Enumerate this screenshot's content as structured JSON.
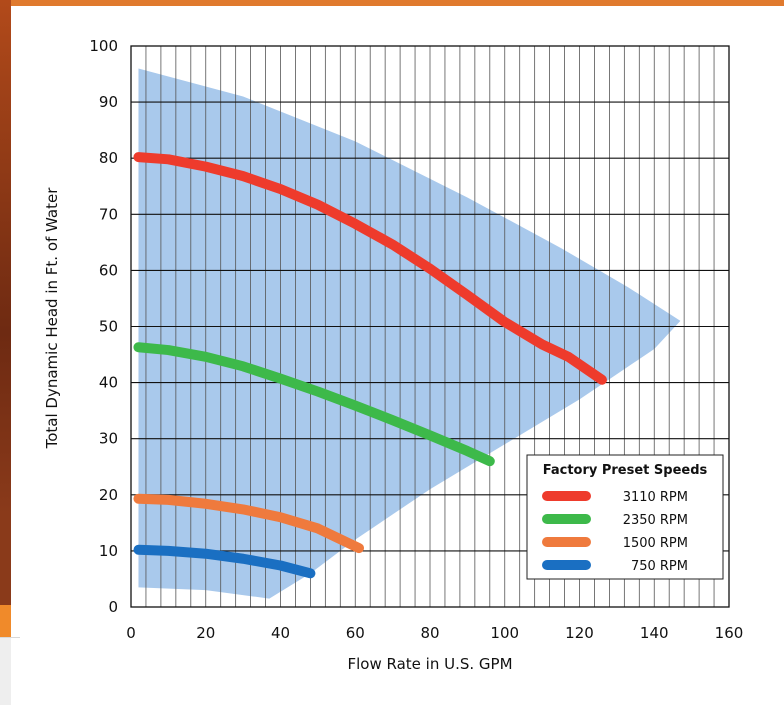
{
  "chart_data": {
    "type": "line",
    "xlabel": "Flow Rate in U.S. GPM",
    "ylabel": "Total Dynamic Head in Ft. of Water",
    "xlim": [
      0,
      160
    ],
    "ylim": [
      0,
      100
    ],
    "x_ticks": [
      0,
      20,
      40,
      60,
      80,
      100,
      120,
      140,
      160
    ],
    "y_ticks": [
      0,
      10,
      20,
      30,
      40,
      50,
      60,
      70,
      80,
      90,
      100
    ],
    "x_tick_labels": [
      "0",
      "20",
      "40",
      "60",
      "80",
      "100",
      "120",
      "140",
      "160"
    ],
    "y_tick_labels": [
      "0",
      "10",
      "20",
      "30",
      "40",
      "50",
      "60",
      "70",
      "80",
      "90",
      "100"
    ],
    "grid": {
      "vertical_every": 4,
      "horizontal_every": 10
    },
    "legend": {
      "title": "Factory Preset Speeds",
      "position": "bottom-right"
    },
    "operating_region": {
      "color": "#a9c9ec",
      "boundary": [
        {
          "x": 2,
          "y": 96
        },
        {
          "x": 30,
          "y": 91
        },
        {
          "x": 60,
          "y": 83
        },
        {
          "x": 90,
          "y": 73
        },
        {
          "x": 115,
          "y": 64
        },
        {
          "x": 133,
          "y": 57
        },
        {
          "x": 147,
          "y": 51
        },
        {
          "x": 140,
          "y": 46
        },
        {
          "x": 120,
          "y": 37
        },
        {
          "x": 100,
          "y": 29
        },
        {
          "x": 80,
          "y": 21
        },
        {
          "x": 60,
          "y": 12
        },
        {
          "x": 48,
          "y": 6
        },
        {
          "x": 37,
          "y": 1.5
        },
        {
          "x": 20,
          "y": 3
        },
        {
          "x": 2,
          "y": 3.5
        }
      ]
    },
    "series": [
      {
        "name": "3110 RPM",
        "color": "#ee3b2c",
        "points": [
          [
            2,
            80.2
          ],
          [
            10,
            79.8
          ],
          [
            20,
            78.5
          ],
          [
            30,
            76.8
          ],
          [
            40,
            74.5
          ],
          [
            50,
            71.7
          ],
          [
            60,
            68.3
          ],
          [
            70,
            64.6
          ],
          [
            80,
            60.3
          ],
          [
            90,
            55.6
          ],
          [
            100,
            50.8
          ],
          [
            110,
            46.8
          ],
          [
            117,
            44.6
          ],
          [
            126,
            40.5
          ]
        ]
      },
      {
        "name": "2350 RPM",
        "color": "#3db94a",
        "points": [
          [
            2,
            46.3
          ],
          [
            10,
            45.8
          ],
          [
            20,
            44.6
          ],
          [
            30,
            42.9
          ],
          [
            40,
            40.7
          ],
          [
            50,
            38.4
          ],
          [
            60,
            35.9
          ],
          [
            70,
            33.3
          ],
          [
            80,
            30.6
          ],
          [
            90,
            27.8
          ],
          [
            96,
            26
          ]
        ]
      },
      {
        "name": "1500 RPM",
        "color": "#ef7a3d",
        "points": [
          [
            2,
            19.3
          ],
          [
            10,
            19.1
          ],
          [
            20,
            18.4
          ],
          [
            30,
            17.4
          ],
          [
            40,
            16
          ],
          [
            50,
            14
          ],
          [
            61,
            10.5
          ]
        ]
      },
      {
        "name": "750 RPM",
        "color": "#1a6fc2",
        "points": [
          [
            2,
            10.2
          ],
          [
            10,
            10
          ],
          [
            20,
            9.5
          ],
          [
            30,
            8.6
          ],
          [
            40,
            7.4
          ],
          [
            48,
            6
          ]
        ]
      }
    ]
  }
}
